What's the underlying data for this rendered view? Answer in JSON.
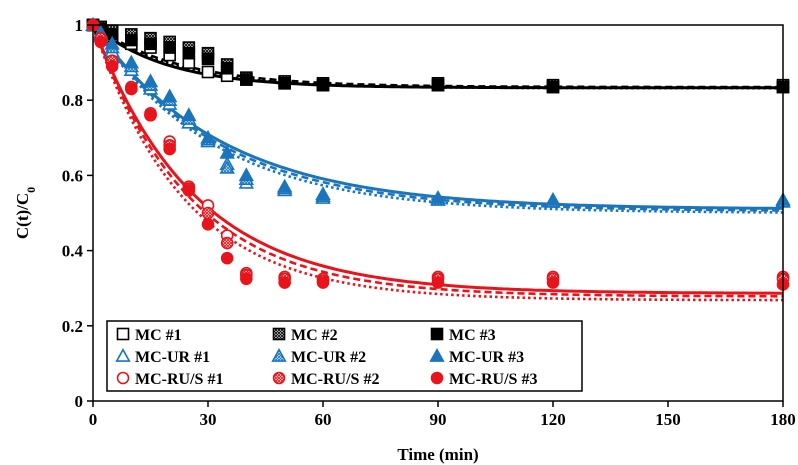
{
  "chart_data": {
    "type": "scatter",
    "title": "",
    "xlabel": "Time (min)",
    "ylabel_main": "C(t)/C",
    "ylabel_sub": "0",
    "xlim": [
      0,
      180
    ],
    "ylim": [
      0,
      1
    ],
    "xticks": [
      0,
      30,
      60,
      90,
      120,
      150,
      180
    ],
    "yticks": [
      0,
      0.2,
      0.4,
      0.6,
      0.8,
      1
    ],
    "ytick_labels": [
      "0",
      "0.2",
      "0.4",
      "0.6",
      "0.8",
      "1"
    ],
    "grid": false,
    "legend_position": "bottom-left",
    "series": [
      {
        "name": "MC #1",
        "color": "#000000",
        "marker": "square-open",
        "x": [
          0,
          2,
          5,
          10,
          15,
          20,
          25,
          30,
          35,
          40,
          50,
          60,
          90,
          120,
          180
        ],
        "y": [
          1.0,
          0.99,
          0.97,
          0.95,
          0.94,
          0.92,
          0.9,
          0.875,
          0.865,
          0.855,
          0.845,
          0.84,
          0.84,
          0.835,
          0.835
        ]
      },
      {
        "name": "MC #2",
        "color": "#000000",
        "marker": "square-hatched",
        "x": [
          0,
          2,
          5,
          10,
          15,
          20,
          25,
          30,
          35,
          40,
          50,
          60,
          90,
          120,
          180
        ],
        "y": [
          1.0,
          0.995,
          0.985,
          0.975,
          0.965,
          0.955,
          0.94,
          0.925,
          0.895,
          0.86,
          0.85,
          0.845,
          0.845,
          0.84,
          0.84
        ]
      },
      {
        "name": "MC #3",
        "color": "#000000",
        "marker": "square-filled",
        "x": [
          0,
          2,
          5,
          10,
          15,
          20,
          25,
          30,
          35,
          40,
          50,
          60,
          90,
          120,
          180
        ],
        "y": [
          1.0,
          0.99,
          0.975,
          0.96,
          0.95,
          0.94,
          0.925,
          0.91,
          0.885,
          0.855,
          0.845,
          0.84,
          0.84,
          0.835,
          0.835
        ]
      },
      {
        "name": "MC-UR #1",
        "color": "#1a75bc",
        "marker": "triangle-open",
        "x": [
          0,
          2,
          5,
          10,
          15,
          20,
          25,
          30,
          35,
          40,
          50,
          60,
          90,
          120,
          180
        ],
        "y": [
          1.0,
          0.97,
          0.93,
          0.88,
          0.83,
          0.79,
          0.74,
          0.69,
          0.63,
          0.58,
          0.56,
          0.54,
          0.535,
          0.53,
          0.53
        ]
      },
      {
        "name": "MC-UR #2",
        "color": "#1a75bc",
        "marker": "triangle-hatched",
        "x": [
          0,
          2,
          5,
          10,
          15,
          20,
          25,
          30,
          35,
          40,
          50,
          60,
          90,
          120,
          180
        ],
        "y": [
          1.0,
          0.975,
          0.94,
          0.89,
          0.84,
          0.8,
          0.75,
          0.695,
          0.62,
          0.59,
          0.565,
          0.545,
          0.535,
          0.53,
          0.53
        ]
      },
      {
        "name": "MC-UR #3",
        "color": "#1a75bc",
        "marker": "triangle-filled",
        "x": [
          0,
          2,
          5,
          10,
          15,
          20,
          25,
          30,
          35,
          40,
          50,
          60,
          90,
          120,
          180
        ],
        "y": [
          1.0,
          0.98,
          0.95,
          0.9,
          0.85,
          0.81,
          0.76,
          0.7,
          0.66,
          0.6,
          0.57,
          0.55,
          0.54,
          0.535,
          0.535
        ]
      },
      {
        "name": "MC-RU/S #1",
        "color": "#e8141b",
        "marker": "circle-open",
        "x": [
          0,
          2,
          5,
          10,
          15,
          20,
          25,
          30,
          35,
          40,
          50,
          60,
          90,
          120,
          180
        ],
        "y": [
          1.0,
          0.96,
          0.9,
          0.83,
          0.76,
          0.69,
          0.57,
          0.52,
          0.44,
          0.34,
          0.33,
          0.325,
          0.33,
          0.33,
          0.33
        ]
      },
      {
        "name": "MC-RU/S #2",
        "color": "#e8141b",
        "marker": "circle-hatched",
        "x": [
          0,
          2,
          5,
          10,
          15,
          20,
          25,
          30,
          35,
          40,
          50,
          60,
          90,
          120,
          180
        ],
        "y": [
          1.0,
          0.965,
          0.905,
          0.835,
          0.765,
          0.68,
          0.565,
          0.5,
          0.42,
          0.335,
          0.325,
          0.32,
          0.325,
          0.325,
          0.325
        ]
      },
      {
        "name": "MC-RU/S #3",
        "color": "#e8141b",
        "marker": "circle-filled",
        "x": [
          0,
          2,
          5,
          10,
          15,
          20,
          25,
          30,
          35,
          40,
          50,
          60,
          90,
          120,
          180
        ],
        "y": [
          1.0,
          0.955,
          0.89,
          0.83,
          0.76,
          0.67,
          0.56,
          0.47,
          0.38,
          0.325,
          0.315,
          0.315,
          0.315,
          0.315,
          0.31
        ]
      }
    ],
    "fits": [
      {
        "color": "#000000",
        "style": "solid",
        "c_inf": 0.833,
        "k": 0.052
      },
      {
        "color": "#000000",
        "style": "dashed",
        "c_inf": 0.835,
        "k": 0.045
      },
      {
        "color": "#000000",
        "style": "dotted",
        "c_inf": 0.832,
        "k": 0.048
      },
      {
        "color": "#1a75bc",
        "style": "solid",
        "c_inf": 0.51,
        "k": 0.03
      },
      {
        "color": "#1a75bc",
        "style": "dashed",
        "c_inf": 0.505,
        "k": 0.031
      },
      {
        "color": "#1a75bc",
        "style": "dotted",
        "c_inf": 0.5,
        "k": 0.032
      },
      {
        "color": "#e8141b",
        "style": "solid",
        "c_inf": 0.286,
        "k": 0.038
      },
      {
        "color": "#e8141b",
        "style": "dashed",
        "c_inf": 0.278,
        "k": 0.04
      },
      {
        "color": "#e8141b",
        "style": "dotted",
        "c_inf": 0.268,
        "k": 0.042
      }
    ]
  }
}
